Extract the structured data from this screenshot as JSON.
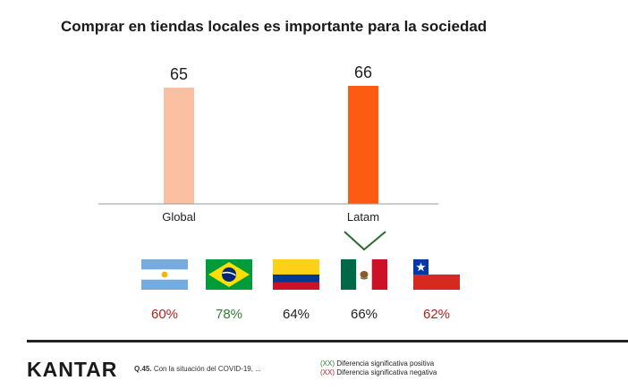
{
  "chart_data": {
    "type": "bar",
    "title": "Comprar en tiendas locales es importante para la sociedad",
    "categories": [
      "Global",
      "Latam"
    ],
    "values": [
      65,
      66
    ],
    "ylim": [
      0,
      70
    ],
    "bar_colors": [
      "#fbbfa2",
      "#fd5a12"
    ],
    "grid": false,
    "legend": "none"
  },
  "countries": [
    {
      "flag": "argentina-flag",
      "value": "60%",
      "color": "#b22222"
    },
    {
      "flag": "brazil-flag",
      "value": "78%",
      "color": "#2e7d32"
    },
    {
      "flag": "colombia-flag",
      "value": "64%",
      "color": "#222222"
    },
    {
      "flag": "mexico-flag",
      "value": "66%",
      "color": "#222222"
    },
    {
      "flag": "chile-flag",
      "value": "62%",
      "color": "#b22222"
    }
  ],
  "footer": {
    "logo": "KANTAR",
    "question_id": "Q.45.",
    "question_text": "Con la situación del COVID-19, ...",
    "legend_positive": "(XX) Diferencia significativa positiva",
    "legend_negative": "(XX) Diferencia significativa negativa",
    "positive_color": "#2e7d32",
    "negative_color": "#b22222"
  }
}
